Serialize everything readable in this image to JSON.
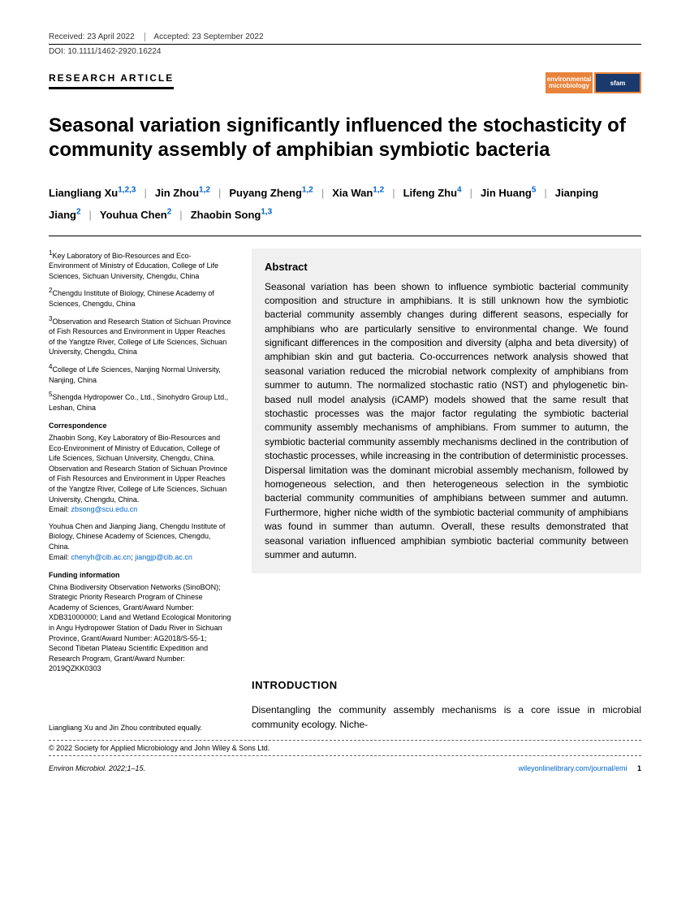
{
  "meta": {
    "received": "Received: 23 April 2022",
    "accepted": "Accepted: 23 September 2022",
    "doi": "DOI: 10.1111/1462-2920.16224",
    "article_type": "RESEARCH ARTICLE"
  },
  "logos": {
    "env": "environmental microbiology",
    "sfam": "sfam"
  },
  "title": "Seasonal variation significantly influenced the stochasticity of community assembly of amphibian symbiotic bacteria",
  "authors": [
    {
      "name": "Liangliang Xu",
      "aff": "1,2,3"
    },
    {
      "name": "Jin Zhou",
      "aff": "1,2"
    },
    {
      "name": "Puyang Zheng",
      "aff": "1,2"
    },
    {
      "name": "Xia Wan",
      "aff": "1,2"
    },
    {
      "name": "Lifeng Zhu",
      "aff": "4"
    },
    {
      "name": "Jin Huang",
      "aff": "5"
    },
    {
      "name": "Jianping Jiang",
      "aff": "2"
    },
    {
      "name": "Youhua Chen",
      "aff": "2"
    },
    {
      "name": "Zhaobin Song",
      "aff": "1,3"
    }
  ],
  "affiliations": [
    {
      "n": "1",
      "text": "Key Laboratory of Bio-Resources and Eco-Environment of Ministry of Education, College of Life Sciences, Sichuan University, Chengdu, China"
    },
    {
      "n": "2",
      "text": "Chengdu Institute of Biology, Chinese Academy of Sciences, Chengdu, China"
    },
    {
      "n": "3",
      "text": "Observation and Research Station of Sichuan Province of Fish Resources and Environment in Upper Reaches of the Yangtze River, College of Life Sciences, Sichuan University, Chengdu, China"
    },
    {
      "n": "4",
      "text": "College of Life Sciences, Nanjing Normal University, Nanjing, China"
    },
    {
      "n": "5",
      "text": "Shengda Hydropower Co., Ltd., Sinohydro Group Ltd., Leshan, China"
    }
  ],
  "correspondence": {
    "heading": "Correspondence",
    "text1": "Zhaobin Song, Key Laboratory of Bio-Resources and Eco-Environment of Ministry of Education, College of Life Sciences, Sichuan University, Chengdu, China. Observation and Research Station of Sichuan Province of Fish Resources and Environment in Upper Reaches of the Yangtze River, College of Life Sciences, Sichuan University, Chengdu, China.",
    "email1_label": "Email: ",
    "email1": "zbsong@scu.edu.cn",
    "text2": "Youhua Chen and Jianping Jiang, Chengdu Institute of Biology, Chinese Academy of Sciences, Chengdu, China.",
    "email2_label": "Email: ",
    "email2a": "chenyh@cib.ac.cn",
    "email2b": "jiangjp@cib.ac.cn"
  },
  "funding": {
    "heading": "Funding information",
    "text": "China Biodiversity Observation Networks (SinoBON); Strategic Priority Research Program of Chinese Academy of Sciences, Grant/Award Number: XDB31000000; Land and Wetland Ecological Monitoring in Angu Hydropower Station of Dadu River in Sichuan Province, Grant/Award Number: AG2018/S-55-1; Second Tibetan Plateau Scientific Expedition and Research Program, Grant/Award Number: 2019QZKK0303"
  },
  "abstract": {
    "heading": "Abstract",
    "text": "Seasonal variation has been shown to influence symbiotic bacterial community composition and structure in amphibians. It is still unknown how the symbiotic bacterial community assembly changes during different seasons, especially for amphibians who are particularly sensitive to environmental change. We found significant differences in the composition and diversity (alpha and beta diversity) of amphibian skin and gut bacteria. Co-occurrences network analysis showed that seasonal variation reduced the microbial network complexity of amphibians from summer to autumn. The normalized stochastic ratio (NST) and phylogenetic bin-based null model analysis (iCAMP) models showed that the same result that stochastic processes was the major factor regulating the symbiotic bacterial community assembly mechanisms of amphibians. From summer to autumn, the symbiotic bacterial community assembly mechanisms declined in the contribution of stochastic processes, while increasing in the contribution of deterministic processes. Dispersal limitation was the dominant microbial assembly mechanism, followed by homogeneous selection, and then heterogeneous selection in the symbiotic bacterial community communities of amphibians between summer and autumn. Furthermore, higher niche width of the symbiotic bacterial community of amphibians was found in summer than autumn. Overall, these results demonstrated that seasonal variation influenced amphibian symbiotic bacterial community between summer and autumn."
  },
  "intro": {
    "heading": "INTRODUCTION",
    "text": "Disentangling the community assembly mechanisms is a core issue in microbial community ecology. Niche-"
  },
  "equal": "Liangliang Xu and Jin Zhou contributed equally.",
  "copyright": "© 2022 Society for Applied Microbiology and John Wiley & Sons Ltd.",
  "footer": {
    "journal": "Environ Microbiol. 2022;1–15.",
    "url": "wileyonlinelibrary.com/journal/emi",
    "page": "1"
  }
}
